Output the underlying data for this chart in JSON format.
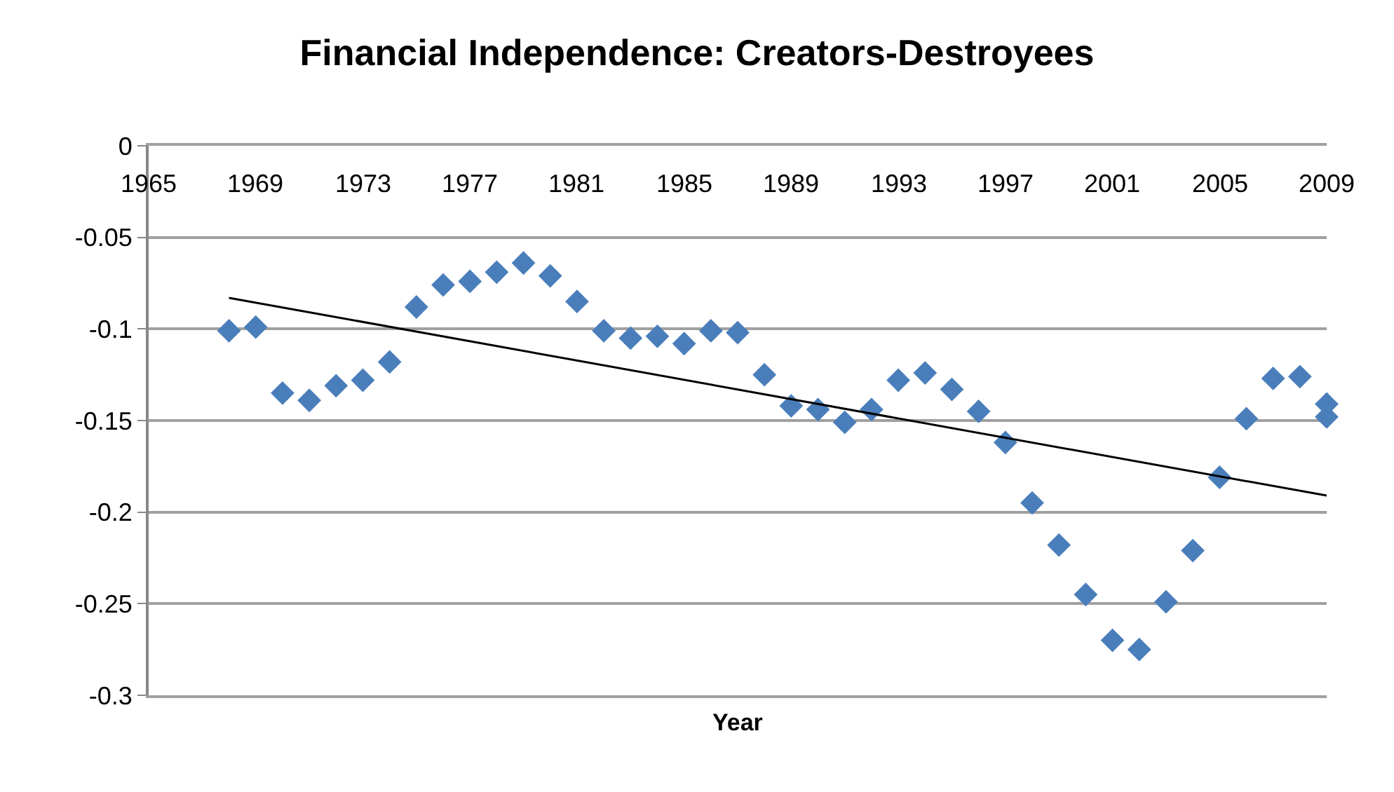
{
  "chart_data": {
    "type": "scatter",
    "title": "Financial Independence: Creators-Destroyees",
    "xlabel": "Year",
    "xlim": [
      1965,
      2009
    ],
    "xticks": [
      1965,
      1969,
      1973,
      1977,
      1981,
      1985,
      1989,
      1993,
      1997,
      2001,
      2005,
      2009
    ],
    "ylim": [
      -0.3,
      0
    ],
    "yticks": [
      0,
      -0.05,
      -0.1,
      -0.15,
      -0.2,
      -0.25,
      -0.3
    ],
    "grid": "y",
    "series": [
      {
        "marker": "diamond",
        "color": "#4a7ebb",
        "x": [
          1968,
          1969,
          1970,
          1971,
          1972,
          1973,
          1974,
          1975,
          1976,
          1977,
          1978,
          1979,
          1980,
          1981,
          1982,
          1983,
          1984,
          1985,
          1986,
          1987,
          1988,
          1989,
          1990,
          1991,
          1992,
          1993,
          1994,
          1995,
          1996,
          1997,
          1998,
          1999,
          2000,
          2001,
          2002,
          2003,
          2004,
          2005,
          2006,
          2007,
          2008,
          2009,
          2009
        ],
        "values": [
          -0.101,
          -0.099,
          -0.135,
          -0.139,
          -0.131,
          -0.128,
          -0.118,
          -0.088,
          -0.076,
          -0.074,
          -0.069,
          -0.064,
          -0.071,
          -0.085,
          -0.101,
          -0.105,
          -0.104,
          -0.108,
          -0.101,
          -0.102,
          -0.125,
          -0.142,
          -0.144,
          -0.151,
          -0.144,
          -0.128,
          -0.124,
          -0.133,
          -0.145,
          -0.162,
          -0.195,
          -0.218,
          -0.245,
          -0.27,
          -0.275,
          -0.249,
          -0.221,
          -0.181,
          -0.149,
          -0.127,
          -0.126,
          -0.141,
          -0.148
        ]
      },
      {
        "type": "line",
        "color": "#000000",
        "line_style": "solid",
        "marker": "none",
        "x": [
          1968,
          2009
        ],
        "values": [
          -0.083,
          -0.191
        ]
      }
    ]
  }
}
